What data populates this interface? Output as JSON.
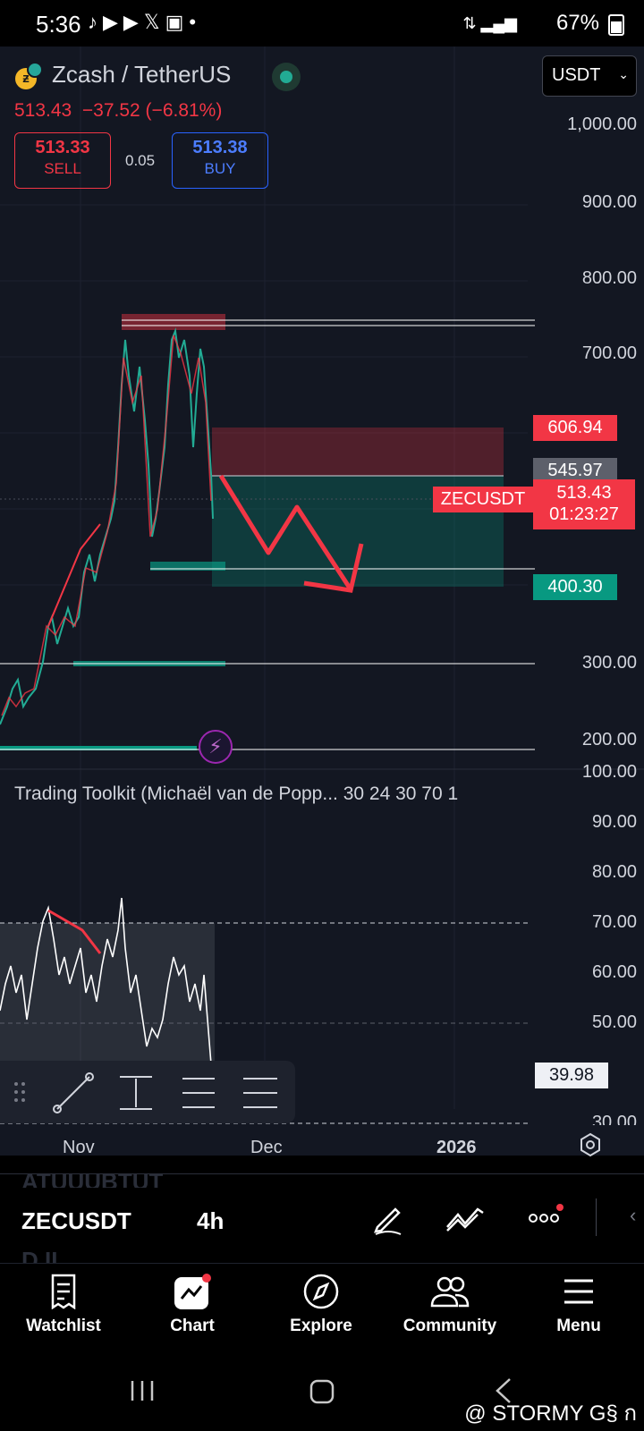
{
  "status_bar": {
    "time": "5:36",
    "battery": "67%",
    "icons": [
      "tiktok-icon",
      "youtube-icon",
      "play-icon",
      "x-icon",
      "app-icon",
      "dot"
    ]
  },
  "header": {
    "symbol_name": "Zcash / TetherUS",
    "last_price": "513.43",
    "change": "−37.52 (−6.81%)",
    "sell_price": "513.33",
    "sell_label": "SELL",
    "spread": "0.05",
    "buy_price": "513.38",
    "buy_label": "BUY",
    "currency": "USDT"
  },
  "price_axis": {
    "labels": [
      "1,000.00",
      "900.00",
      "800.00",
      "700.00",
      "300.00",
      "200.00"
    ]
  },
  "tags": {
    "stop": "606.94",
    "entry": "545.97",
    "ticker": "ZECUSDT",
    "current": "513.43",
    "countdown": "01:23:27",
    "target": "400.30"
  },
  "indicator": {
    "title": "Trading Toolkit (Michaël van de Popp... 30 24 30 70 1",
    "axis_labels": [
      "100.00",
      "90.00",
      "80.00",
      "70.00",
      "60.00",
      "50.00",
      "30.00"
    ],
    "value": "39.98"
  },
  "time_axis": {
    "labels": [
      "Nov",
      "Dec",
      "2026"
    ]
  },
  "bottom_panel": {
    "symbol": "ZECUSDT",
    "interval": "4h",
    "ghost_top": "ATUUUBTUT",
    "ghost_bottom": "D.II"
  },
  "nav": {
    "items": [
      {
        "label": "Watchlist"
      },
      {
        "label": "Chart"
      },
      {
        "label": "Explore"
      },
      {
        "label": "Community"
      },
      {
        "label": "Menu"
      }
    ]
  },
  "watermark": "@ STORMY G§ ก",
  "colors": {
    "bg": "#131722",
    "red": "#f23645",
    "green": "#089981",
    "blue": "#2962ff"
  }
}
